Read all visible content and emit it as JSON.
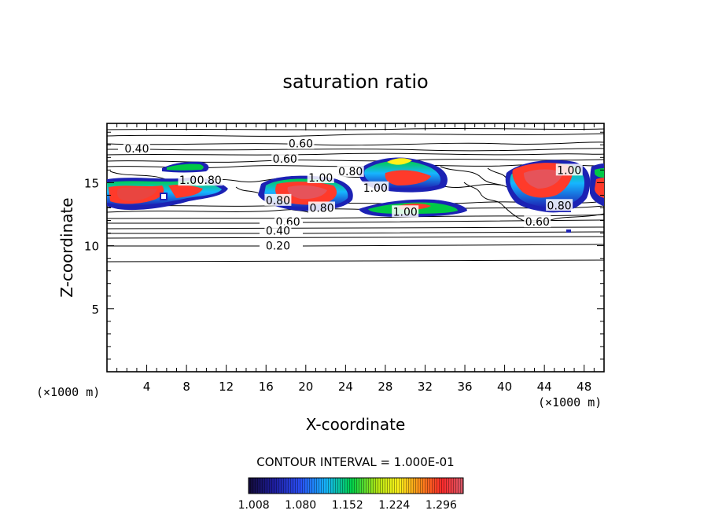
{
  "chart_data": {
    "type": "heatmap",
    "title": "saturation ratio",
    "xlabel": "X-coordinate",
    "ylabel": "Z-coordinate",
    "x_unit": "(×1000 m)",
    "z_unit": "(×1000 m)",
    "xlim": [
      0,
      50
    ],
    "ylim": [
      0,
      19.7
    ],
    "x_ticks": [
      4,
      8,
      12,
      16,
      20,
      24,
      28,
      32,
      36,
      40,
      44,
      48
    ],
    "y_ticks": [
      5,
      10,
      15
    ],
    "contour_interval_label": "CONTOUR INTERVAL = 1.000E-01",
    "contour_labels": [
      {
        "text": "0.40",
        "x": 3.0,
        "z": 17.7
      },
      {
        "text": "0.60",
        "x": 19.5,
        "z": 18.1
      },
      {
        "text": "0.60",
        "x": 17.9,
        "z": 16.9
      },
      {
        "text": "1.00",
        "x": 8.5,
        "z": 15.2
      },
      {
        "text": "0.80",
        "x": 10.3,
        "z": 15.2
      },
      {
        "text": "1.00",
        "x": 21.5,
        "z": 15.4
      },
      {
        "text": "0.80",
        "x": 24.5,
        "z": 15.9
      },
      {
        "text": "1.00",
        "x": 27.0,
        "z": 14.6
      },
      {
        "text": "0.80",
        "x": 17.2,
        "z": 13.6
      },
      {
        "text": "0.80",
        "x": 21.6,
        "z": 13.0
      },
      {
        "text": "1.00",
        "x": 30.0,
        "z": 12.7
      },
      {
        "text": "0.60",
        "x": 18.2,
        "z": 11.9
      },
      {
        "text": "0.40",
        "x": 17.2,
        "z": 11.2
      },
      {
        "text": "0.20",
        "x": 17.2,
        "z": 10.0
      },
      {
        "text": "0.60",
        "x": 43.3,
        "z": 11.9
      },
      {
        "text": "0.80",
        "x": 45.5,
        "z": 13.2
      },
      {
        "text": "1.00",
        "x": 46.5,
        "z": 16.0
      }
    ],
    "colorbar": {
      "labels": [
        "1.008",
        "1.080",
        "1.152",
        "1.224",
        "1.296"
      ],
      "values": [
        1.008,
        1.08,
        1.152,
        1.224,
        1.296
      ],
      "range": [
        1.0,
        1.33
      ],
      "colors": [
        "#120a36",
        "#1e1ea0",
        "#2a4ef5",
        "#16b6ff",
        "#00d24a",
        "#b4e614",
        "#fff21a",
        "#ff8a1a",
        "#ff2a2a",
        "#d65a6a"
      ]
    },
    "supersaturated_regions": [
      {
        "x": [
          0,
          5.5
        ],
        "z": [
          13.0,
          15.0
        ],
        "peak": 1.296
      },
      {
        "x": [
          5.0,
          11.5
        ],
        "z": [
          13.9,
          15.1
        ],
        "peak": 1.25
      },
      {
        "x": [
          5.8,
          9.6
        ],
        "z": [
          16.2,
          17.0
        ],
        "peak": 1.12
      },
      {
        "x": [
          15.7,
          23.8
        ],
        "z": [
          12.8,
          15.5
        ],
        "peak": 1.296
      },
      {
        "x": [
          25.8,
          33.6
        ],
        "z": [
          14.2,
          16.9
        ],
        "peak": 1.26
      },
      {
        "x": [
          26.0,
          34.5
        ],
        "z": [
          12.3,
          13.7
        ],
        "peak": 1.2
      },
      {
        "x": [
          40.2,
          47.0
        ],
        "z": [
          13.2,
          17.0
        ],
        "peak": 1.296
      },
      {
        "x": [
          48.9,
          50.0
        ],
        "z": [
          13.0,
          16.5
        ],
        "peak": 1.24
      }
    ]
  }
}
